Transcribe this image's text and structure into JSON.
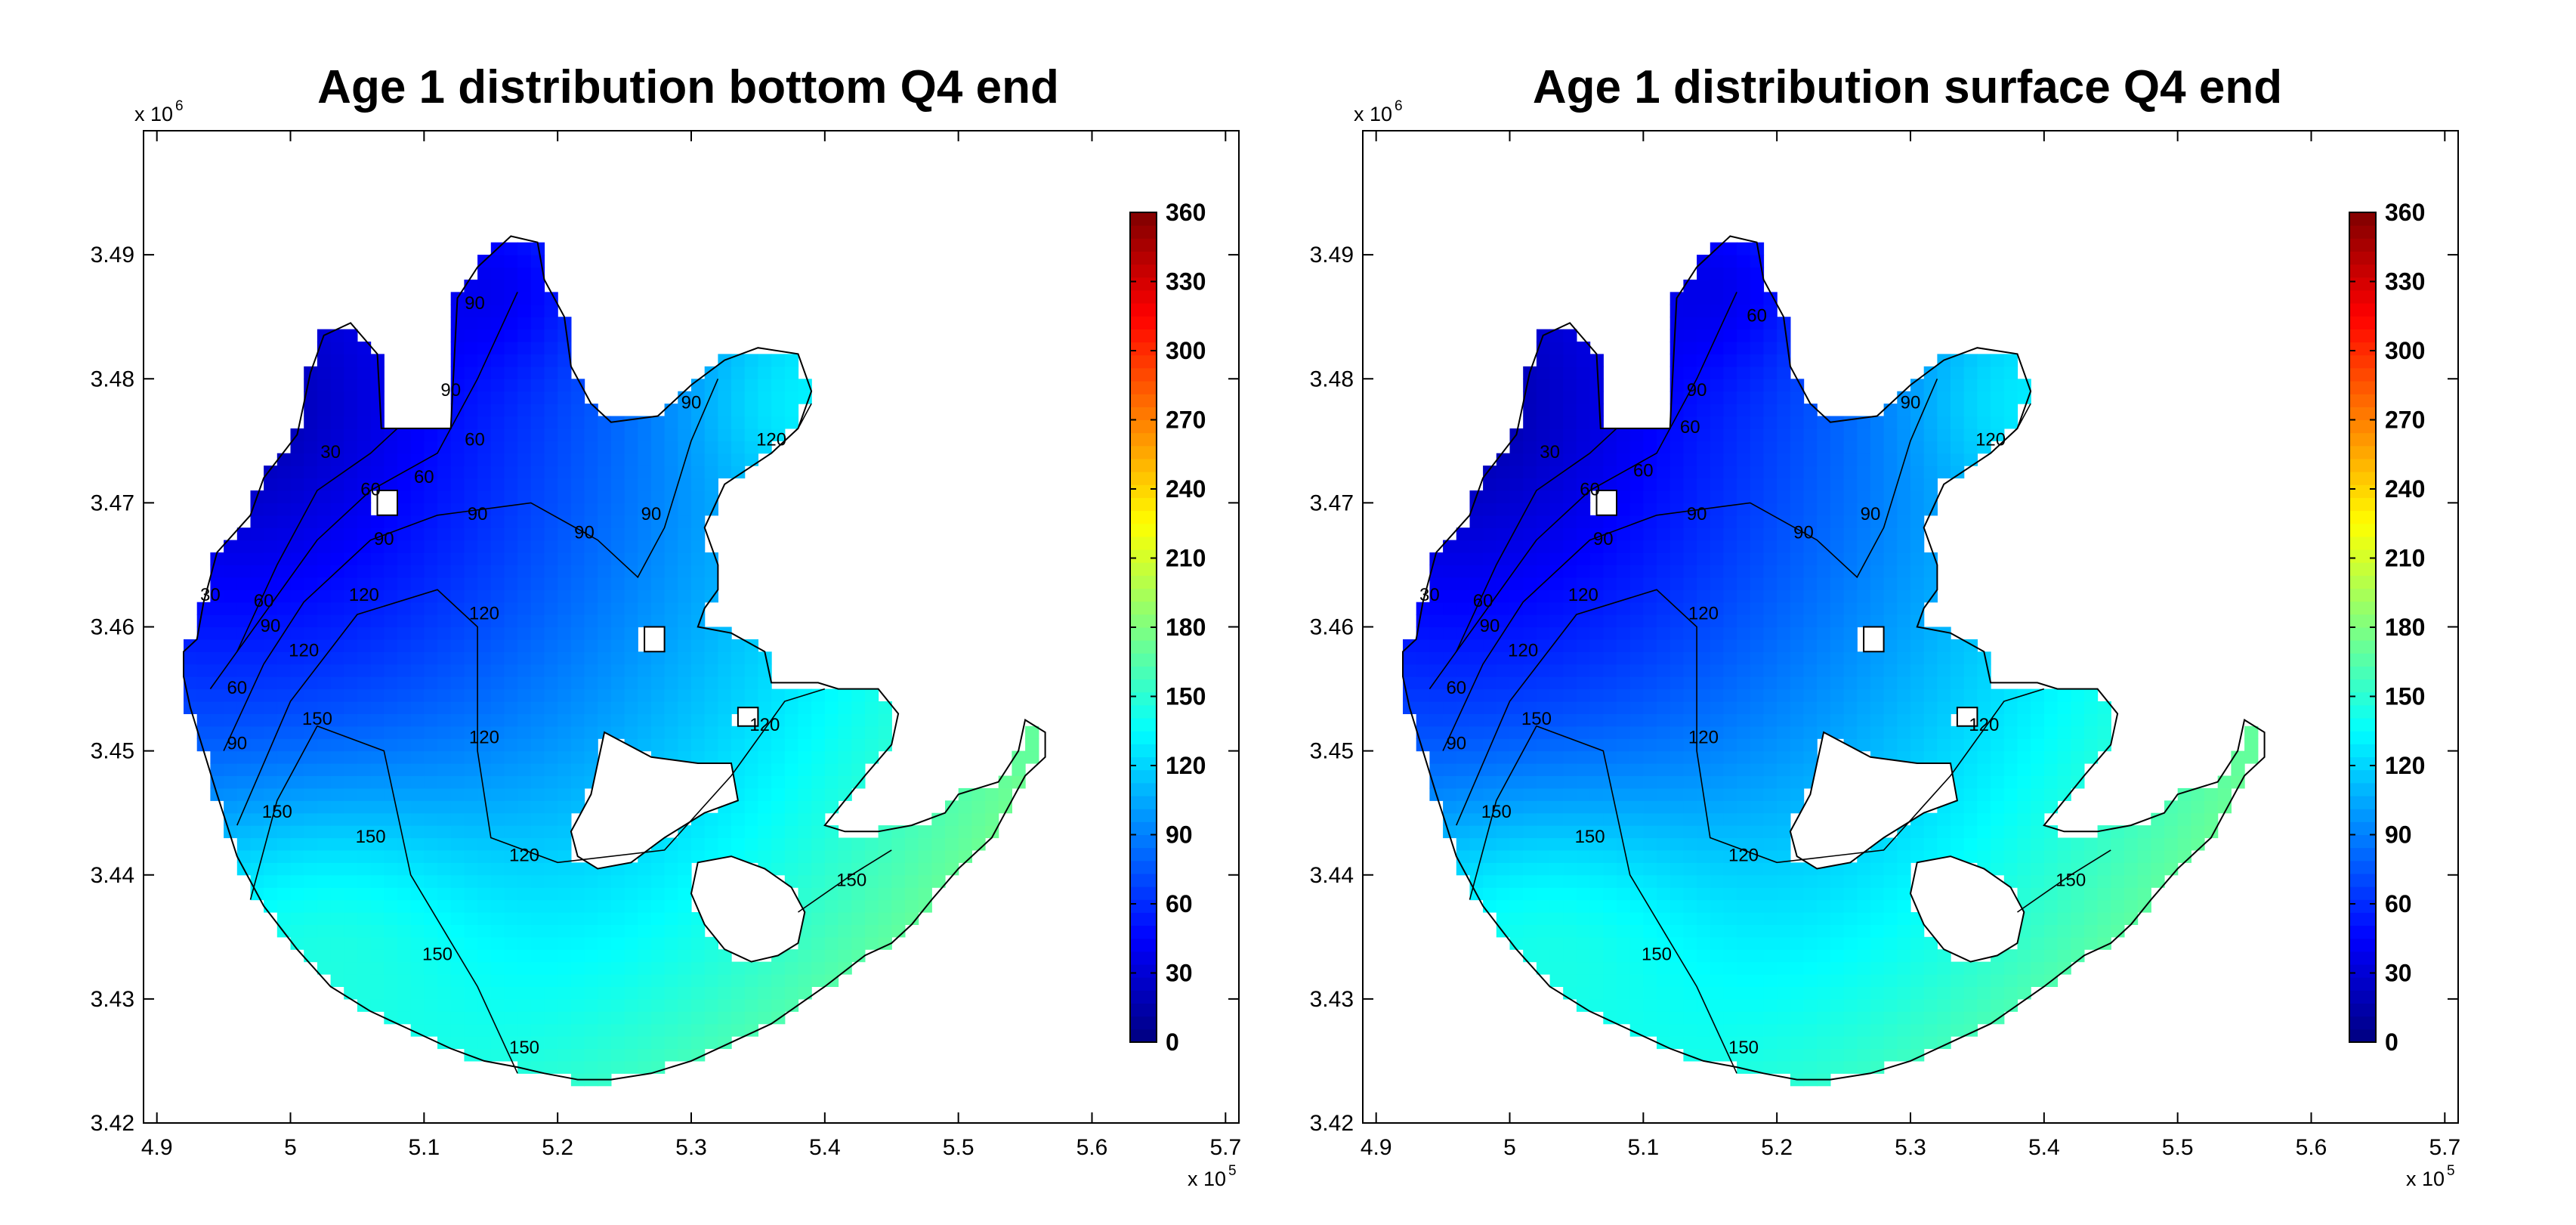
{
  "chart_data": [
    {
      "type": "heatmap",
      "title": "Age 1 distribution bottom Q4 end",
      "xlim": [
        489000,
        571000
      ],
      "ylim": [
        3420000,
        3500000
      ],
      "xticks": [
        490000,
        500000,
        510000,
        520000,
        530000,
        540000,
        550000,
        560000,
        570000
      ],
      "xtick_labels": [
        "4.9",
        "5",
        "5.1",
        "5.2",
        "5.3",
        "5.4",
        "5.5",
        "5.6",
        "5.7"
      ],
      "yticks": [
        3420000,
        3430000,
        3440000,
        3450000,
        3460000,
        3470000,
        3480000,
        3490000
      ],
      "ytick_labels": [
        "3.42",
        "3.43",
        "3.44",
        "3.45",
        "3.46",
        "3.47",
        "3.48",
        "3.49"
      ],
      "x_multiplier": "x 10",
      "x_multiplier_exp": "5",
      "y_multiplier": "x 10",
      "y_multiplier_exp": "6",
      "colorbar": {
        "min": 0,
        "max": 360,
        "ticks": [
          "0",
          "30",
          "60",
          "90",
          "120",
          "150",
          "180",
          "210",
          "240",
          "270",
          "300",
          "330",
          "360"
        ],
        "colormap": "jet"
      },
      "contour_levels": [
        30,
        60,
        90,
        120,
        150
      ],
      "contour_labels": [
        {
          "text": "30",
          "x": 503000,
          "y": 3474000
        },
        {
          "text": "60",
          "x": 506000,
          "y": 3471000
        },
        {
          "text": "90",
          "x": 512000,
          "y": 3479000
        },
        {
          "text": "60",
          "x": 510000,
          "y": 3472000
        },
        {
          "text": "60",
          "x": 513800,
          "y": 3475000
        },
        {
          "text": "90",
          "x": 513800,
          "y": 3486000
        },
        {
          "text": "90",
          "x": 530000,
          "y": 3478000
        },
        {
          "text": "90",
          "x": 507000,
          "y": 3467000
        },
        {
          "text": "90",
          "x": 514000,
          "y": 3469000
        },
        {
          "text": "90",
          "x": 522000,
          "y": 3467500
        },
        {
          "text": "90",
          "x": 527000,
          "y": 3469000
        },
        {
          "text": "120",
          "x": 536000,
          "y": 3475000
        },
        {
          "text": "30",
          "x": 494000,
          "y": 3462500
        },
        {
          "text": "60",
          "x": 498000,
          "y": 3462000
        },
        {
          "text": "60",
          "x": 496000,
          "y": 3455000
        },
        {
          "text": "90",
          "x": 498500,
          "y": 3460000
        },
        {
          "text": "90",
          "x": 496000,
          "y": 3450500
        },
        {
          "text": "120",
          "x": 501000,
          "y": 3458000
        },
        {
          "text": "120",
          "x": 505500,
          "y": 3462500
        },
        {
          "text": "120",
          "x": 514500,
          "y": 3461000
        },
        {
          "text": "120",
          "x": 514500,
          "y": 3451000
        },
        {
          "text": "120",
          "x": 517500,
          "y": 3441500
        },
        {
          "text": "120",
          "x": 535500,
          "y": 3452000
        },
        {
          "text": "150",
          "x": 502000,
          "y": 3452500
        },
        {
          "text": "150",
          "x": 499000,
          "y": 3445000
        },
        {
          "text": "150",
          "x": 506000,
          "y": 3443000
        },
        {
          "text": "150",
          "x": 511000,
          "y": 3433500
        },
        {
          "text": "150",
          "x": 517500,
          "y": 3426000
        },
        {
          "text": "150",
          "x": 542000,
          "y": 3439500
        }
      ]
    },
    {
      "type": "heatmap",
      "title": "Age 1 distribution surface Q4 end",
      "xlim": [
        489000,
        571000
      ],
      "ylim": [
        3420000,
        3500000
      ],
      "xticks": [
        490000,
        500000,
        510000,
        520000,
        530000,
        540000,
        550000,
        560000,
        570000
      ],
      "xtick_labels": [
        "4.9",
        "5",
        "5.1",
        "5.2",
        "5.3",
        "5.4",
        "5.5",
        "5.6",
        "5.7"
      ],
      "yticks": [
        3420000,
        3430000,
        3440000,
        3450000,
        3460000,
        3470000,
        3480000,
        3490000
      ],
      "ytick_labels": [
        "3.42",
        "3.43",
        "3.44",
        "3.45",
        "3.46",
        "3.47",
        "3.48",
        "3.49"
      ],
      "x_multiplier": "x 10",
      "x_multiplier_exp": "5",
      "y_multiplier": "x 10",
      "y_multiplier_exp": "6",
      "colorbar": {
        "min": 0,
        "max": 360,
        "ticks": [
          "0",
          "30",
          "60",
          "90",
          "120",
          "150",
          "180",
          "210",
          "240",
          "270",
          "300",
          "330",
          "360"
        ],
        "colormap": "jet"
      },
      "contour_levels": [
        30,
        60,
        90,
        120,
        150
      ],
      "contour_labels": [
        {
          "text": "30",
          "x": 503000,
          "y": 3474000
        },
        {
          "text": "60",
          "x": 506000,
          "y": 3471000
        },
        {
          "text": "90",
          "x": 514000,
          "y": 3479000
        },
        {
          "text": "60",
          "x": 510000,
          "y": 3472500
        },
        {
          "text": "60",
          "x": 513500,
          "y": 3476000
        },
        {
          "text": "60",
          "x": 518500,
          "y": 3485000
        },
        {
          "text": "90",
          "x": 530000,
          "y": 3478000
        },
        {
          "text": "90",
          "x": 507000,
          "y": 3467000
        },
        {
          "text": "90",
          "x": 514000,
          "y": 3469000
        },
        {
          "text": "90",
          "x": 522000,
          "y": 3467500
        },
        {
          "text": "90",
          "x": 527000,
          "y": 3469000
        },
        {
          "text": "120",
          "x": 536000,
          "y": 3475000
        },
        {
          "text": "30",
          "x": 494000,
          "y": 3462500
        },
        {
          "text": "60",
          "x": 498000,
          "y": 3462000
        },
        {
          "text": "60",
          "x": 496000,
          "y": 3455000
        },
        {
          "text": "90",
          "x": 498500,
          "y": 3460000
        },
        {
          "text": "90",
          "x": 496000,
          "y": 3450500
        },
        {
          "text": "120",
          "x": 501000,
          "y": 3458000
        },
        {
          "text": "120",
          "x": 505500,
          "y": 3462500
        },
        {
          "text": "120",
          "x": 514500,
          "y": 3461000
        },
        {
          "text": "120",
          "x": 514500,
          "y": 3451000
        },
        {
          "text": "120",
          "x": 517500,
          "y": 3441500
        },
        {
          "text": "120",
          "x": 535500,
          "y": 3452000
        },
        {
          "text": "150",
          "x": 502000,
          "y": 3452500
        },
        {
          "text": "150",
          "x": 499000,
          "y": 3445000
        },
        {
          "text": "150",
          "x": 506000,
          "y": 3443000
        },
        {
          "text": "150",
          "x": 511000,
          "y": 3433500
        },
        {
          "text": "150",
          "x": 517500,
          "y": 3426000
        },
        {
          "text": "150",
          "x": 542000,
          "y": 3439500
        }
      ]
    }
  ]
}
